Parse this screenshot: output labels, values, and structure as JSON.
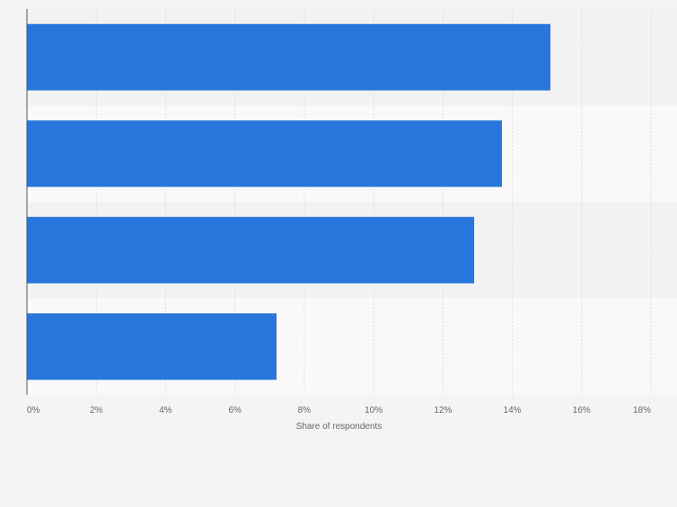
{
  "chart_data": {
    "type": "bar",
    "orientation": "horizontal",
    "categories": [
      "",
      "",
      "",
      ""
    ],
    "values": [
      15.1,
      13.7,
      12.9,
      7.2
    ],
    "xlabel": "Share of respondents",
    "ylabel": "",
    "xlim": [
      0,
      18
    ],
    "tick_values": [
      0,
      2,
      4,
      6,
      8,
      10,
      12,
      14,
      16,
      18
    ],
    "tick_labels": [
      "0%",
      "2%",
      "4%",
      "6%",
      "8%",
      "10%",
      "12%",
      "14%",
      "16%",
      "18%"
    ],
    "grid": true,
    "legend": "none",
    "colors": {
      "bar": "#2776dc",
      "band_dark": "#f2f2f2",
      "band_light": "#f9f9f9",
      "grid": "#dddddd",
      "axis": "#555555",
      "tick_text": "#666666"
    }
  }
}
